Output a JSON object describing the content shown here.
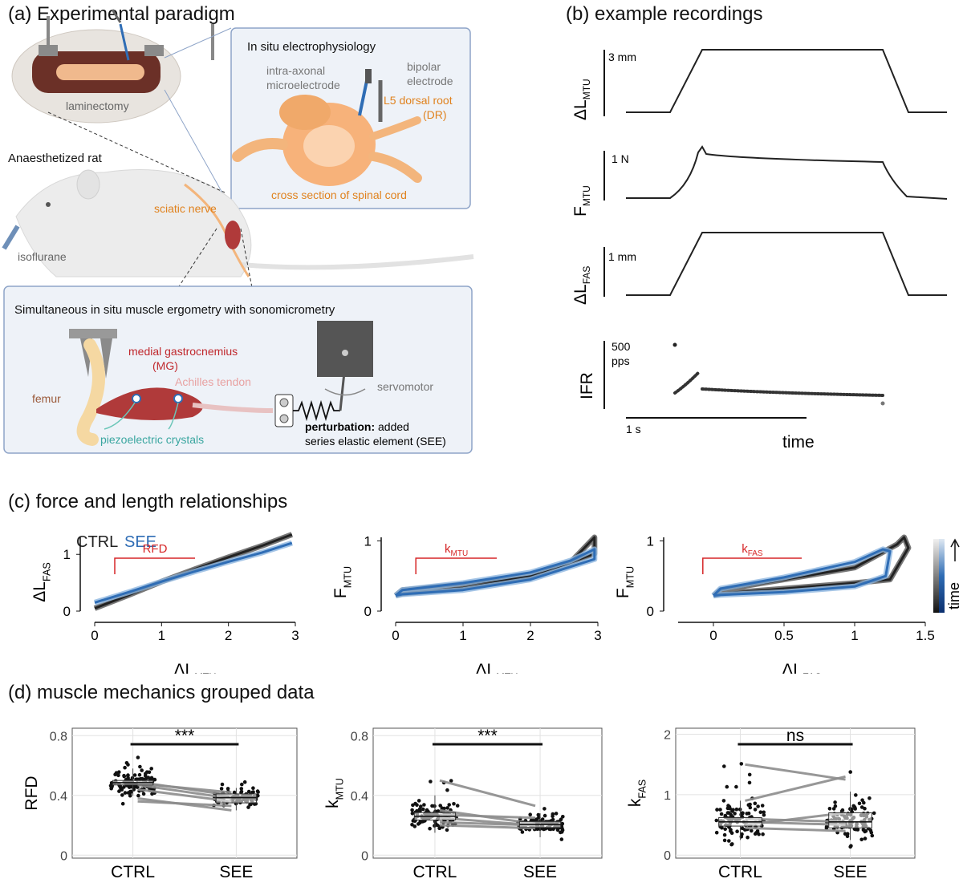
{
  "panel_a": {
    "letter": "(a)",
    "title": "Experimental paradigm",
    "laminectomy": "laminectomy",
    "rat_label": "Anaesthetized rat",
    "sciatic": "sciatic nerve",
    "isoflurane": "isoflurane",
    "inset": {
      "title": "In situ electrophysiology",
      "microelectrode": [
        "intra-axonal",
        "microelectrode"
      ],
      "bipolar": [
        "bipolar",
        "electrode"
      ],
      "dorsal_root": [
        "L5 dorsal root",
        "(DR)"
      ],
      "cross_section": "cross section of spinal cord"
    },
    "ergometry": {
      "title": "Simultaneous in situ muscle ergometry with sonomicrometry",
      "mg": [
        "medial gastrocnemius",
        "(MG)"
      ],
      "achilles": "Achilles tendon",
      "femur": "femur",
      "crystals": "piezoelectric crystals",
      "servomotor": "servomotor",
      "perturbation_bold": "perturbation:",
      "perturbation_rest": " added",
      "perturbation_line2": "series elastic element (SEE)"
    }
  },
  "panel_b": {
    "letter": "(b)",
    "title": "example recordings",
    "traces": [
      {
        "label": "ΔL",
        "sub": "MTU",
        "scale": "3 mm"
      },
      {
        "label": "F",
        "sub": "MTU",
        "scale": "1 N"
      },
      {
        "label": "ΔL",
        "sub": "FAS",
        "scale": "1 mm"
      },
      {
        "label": "IFR",
        "sub": "",
        "scale": "500",
        "scale2": "pps"
      }
    ],
    "time_bar": "1 s",
    "time_label": "time"
  },
  "panel_c": {
    "letter": "(c)",
    "title": "force and length relationships",
    "legend_ctrl": "CTRL",
    "legend_see": "SEE",
    "colorbar_label": "time",
    "colors": {
      "ctrl": "#222222",
      "see": "#2f6db5",
      "see_light": "#8fb6e0",
      "annot": "#d62728"
    }
  },
  "panel_d": {
    "letter": "(d)",
    "title": "muscle mechanics grouped data",
    "colors": {
      "line": "#8c8c8c",
      "point": "#111111"
    }
  },
  "chart_data": [
    {
      "type": "line",
      "xlabel": "ΔL",
      "xlabel_sub": "MTU",
      "ylabel": "ΔL",
      "ylabel_sub": "FAS",
      "xlim": [
        0,
        3
      ],
      "ylim": [
        0,
        1.3
      ],
      "xticks": [
        "0",
        "1",
        "2",
        "3"
      ],
      "yticks": [
        "0",
        "1"
      ],
      "annotation": "RFD",
      "series": [
        {
          "name": "CTRL",
          "x": [
            0,
            0.5,
            1,
            1.5,
            2,
            2.5,
            2.95
          ],
          "y": [
            0.05,
            0.28,
            0.52,
            0.74,
            0.95,
            1.15,
            1.35
          ]
        },
        {
          "name": "SEE",
          "x": [
            0,
            0.5,
            1,
            1.5,
            2,
            2.5,
            2.95
          ],
          "y": [
            0.15,
            0.33,
            0.52,
            0.7,
            0.87,
            1.03,
            1.2
          ]
        }
      ]
    },
    {
      "type": "line",
      "xlabel": "ΔL",
      "xlabel_sub": "MTU",
      "ylabel": "F",
      "ylabel_sub": "MTU",
      "xlim": [
        0,
        3
      ],
      "ylim": [
        0,
        1.05
      ],
      "xticks": [
        "0",
        "1",
        "2",
        "3"
      ],
      "yticks": [
        "0",
        "1"
      ],
      "annotation": "k",
      "annotation_sub": "MTU",
      "series": [
        {
          "name": "CTRL",
          "x": [
            0,
            0.1,
            1,
            2,
            2.6,
            2.95,
            2.95,
            2,
            1,
            0.1,
            0
          ],
          "y": [
            0.22,
            0.3,
            0.38,
            0.5,
            0.7,
            1.05,
            0.82,
            0.48,
            0.33,
            0.25,
            0.22
          ]
        },
        {
          "name": "SEE",
          "x": [
            0,
            0.1,
            1,
            2,
            2.6,
            2.95,
            2.95,
            2,
            1,
            0.1,
            0
          ],
          "y": [
            0.22,
            0.3,
            0.4,
            0.55,
            0.72,
            0.88,
            0.74,
            0.45,
            0.3,
            0.24,
            0.22
          ]
        }
      ]
    },
    {
      "type": "line",
      "xlabel": "ΔL",
      "xlabel_sub": "FAS",
      "ylabel": "F",
      "ylabel_sub": "MTU",
      "xlim": [
        -0.25,
        1.5
      ],
      "ylim": [
        0,
        1.05
      ],
      "xticks": [
        "0",
        "0.5",
        "1",
        "1.5"
      ],
      "yticks": [
        "0",
        "1"
      ],
      "annotation": "k",
      "annotation_sub": "FAS",
      "series": [
        {
          "name": "CTRL",
          "x": [
            0,
            0.05,
            0.5,
            1,
            1.3,
            1.35,
            1.38,
            1.25,
            1,
            0.5,
            0.05,
            0
          ],
          "y": [
            0.22,
            0.3,
            0.45,
            0.62,
            0.95,
            1.05,
            0.9,
            0.45,
            0.4,
            0.32,
            0.25,
            0.22
          ]
        },
        {
          "name": "SEE",
          "x": [
            0,
            0.05,
            0.5,
            1,
            1.2,
            1.25,
            1.22,
            1,
            0.5,
            0.05,
            0
          ],
          "y": [
            0.22,
            0.32,
            0.48,
            0.7,
            0.88,
            0.85,
            0.5,
            0.35,
            0.27,
            0.23,
            0.22
          ]
        }
      ]
    },
    {
      "type": "box",
      "ylabel": "RFD",
      "ylabel_sub": "",
      "categories": [
        "CTRL",
        "SEE"
      ],
      "ylim": [
        -0.02,
        0.85
      ],
      "yticks": [
        0,
        0.4,
        0.8
      ],
      "ytick_labels": [
        "0",
        "0.4",
        "0.8"
      ],
      "significance": "***",
      "box": [
        {
          "q1": 0.47,
          "median": 0.485,
          "q3": 0.5,
          "whisker_low": 0.4,
          "whisker_high": 0.58
        },
        {
          "q1": 0.35,
          "median": 0.385,
          "q3": 0.41,
          "whisker_low": 0.3,
          "whisker_high": 0.45
        }
      ],
      "pairs": [
        [
          0.49,
          0.4
        ],
        [
          0.48,
          0.42
        ],
        [
          0.47,
          0.38
        ],
        [
          0.44,
          0.36
        ],
        [
          0.38,
          0.3
        ],
        [
          0.36,
          0.33
        ]
      ],
      "spread": [
        0.07,
        0.04
      ]
    },
    {
      "type": "box",
      "ylabel": "k",
      "ylabel_sub": "MTU",
      "categories": [
        "CTRL",
        "SEE"
      ],
      "ylim": [
        -0.02,
        0.85
      ],
      "yticks": [
        0,
        0.4,
        0.8
      ],
      "ytick_labels": [
        "0",
        "0.4",
        "0.8"
      ],
      "significance": "***",
      "box": [
        {
          "q1": 0.235,
          "median": 0.26,
          "q3": 0.285,
          "whisker_low": 0.15,
          "whisker_high": 0.4
        },
        {
          "q1": 0.185,
          "median": 0.205,
          "q3": 0.225,
          "whisker_low": 0.12,
          "whisker_high": 0.28
        }
      ],
      "pairs": [
        [
          0.5,
          0.33
        ],
        [
          0.3,
          0.21
        ],
        [
          0.27,
          0.25
        ],
        [
          0.25,
          0.2
        ],
        [
          0.22,
          0.2
        ],
        [
          0.2,
          0.18
        ]
      ],
      "spread": [
        0.08,
        0.05
      ]
    },
    {
      "type": "box",
      "ylabel": "k",
      "ylabel_sub": "FAS",
      "categories": [
        "CTRL",
        "SEE"
      ],
      "ylim": [
        -0.05,
        2.1
      ],
      "yticks": [
        0,
        1,
        2
      ],
      "ytick_labels": [
        "0",
        "1",
        "2"
      ],
      "significance": "ns",
      "box": [
        {
          "q1": 0.48,
          "median": 0.55,
          "q3": 0.62,
          "whisker_low": 0.25,
          "whisker_high": 0.9
        },
        {
          "q1": 0.45,
          "median": 0.55,
          "q3": 0.7,
          "whisker_low": 0.25,
          "whisker_high": 1.05
        }
      ],
      "pairs": [
        [
          1.5,
          1.25
        ],
        [
          0.9,
          1.3
        ],
        [
          0.6,
          0.55
        ],
        [
          0.5,
          0.7
        ],
        [
          0.45,
          0.4
        ],
        [
          0.55,
          0.5
        ]
      ],
      "spread": [
        0.3,
        0.3
      ]
    }
  ]
}
